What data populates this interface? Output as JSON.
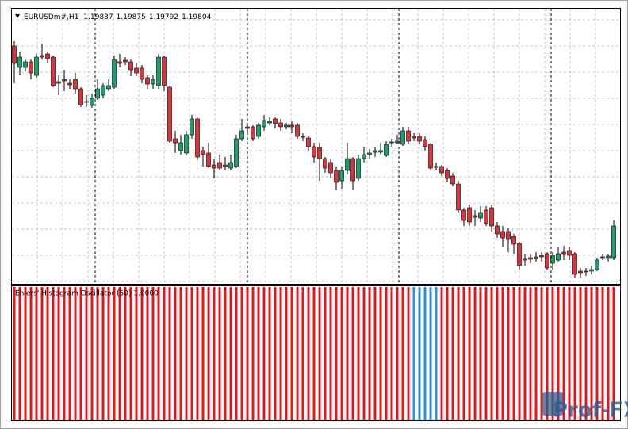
{
  "chart_data": [
    {
      "type": "candlestick",
      "symbol": "EURUSDm#,H1",
      "quote": [
        1.19837,
        1.19875,
        1.19792,
        1.19804
      ],
      "ylim": [
        1.1946,
        1.2119
      ],
      "grid": true,
      "up_color": "#1e9e6b",
      "down_color": "#d8343c",
      "ohlc": [
        [
          1.2096,
          1.2099,
          1.20725,
          1.2085
        ],
        [
          1.20825,
          1.20925,
          1.20775,
          1.2089
        ],
        [
          1.20825,
          1.20875,
          1.208,
          1.2086
        ],
        [
          1.2086,
          1.20875,
          1.2075,
          1.2079
        ],
        [
          1.20775,
          1.2091,
          1.2076,
          1.2089
        ],
        [
          1.209,
          1.20975,
          1.20875,
          1.2089
        ],
        [
          1.2091,
          1.20925,
          1.2085,
          1.2088
        ],
        [
          1.2089,
          1.209,
          1.207,
          1.2071
        ],
        [
          1.20735,
          1.20775,
          1.2065,
          1.20725
        ],
        [
          1.2075,
          1.2081,
          1.20675,
          1.2074
        ],
        [
          1.20725,
          1.2075,
          1.2069,
          1.20715
        ],
        [
          1.2075,
          1.2079,
          1.2066,
          1.2069
        ],
        [
          1.2069,
          1.207,
          1.20575,
          1.2059
        ],
        [
          1.2061,
          1.2065,
          1.20575,
          1.20605
        ],
        [
          1.20585,
          1.2066,
          1.2057,
          1.2063
        ],
        [
          1.2063,
          1.2075,
          1.2062,
          1.2069
        ],
        [
          1.2065,
          1.20725,
          1.2063,
          1.2071
        ],
        [
          1.2069,
          1.2075,
          1.20675,
          1.2071
        ],
        [
          1.207,
          1.209,
          1.2069,
          1.20875
        ],
        [
          1.2086,
          1.2091,
          1.20825,
          1.2085
        ],
        [
          1.2087,
          1.2089,
          1.2084,
          1.2086
        ],
        [
          1.2086,
          1.20875,
          1.2077,
          1.2081
        ],
        [
          1.2082,
          1.2085,
          1.2077,
          1.2079
        ],
        [
          1.2082,
          1.2084,
          1.20725,
          1.2075
        ],
        [
          1.2076,
          1.20775,
          1.2069,
          1.2072
        ],
        [
          1.2072,
          1.20775,
          1.2069,
          1.2075
        ],
        [
          1.2071,
          1.2091,
          1.2069,
          1.2089
        ],
        [
          1.2089,
          1.209,
          1.20675,
          1.2071
        ],
        [
          1.207,
          1.2071,
          1.2035,
          1.2036
        ],
        [
          1.20375,
          1.20425,
          1.20285,
          1.2035
        ],
        [
          1.203,
          1.204,
          1.20275,
          1.2035
        ],
        [
          1.20285,
          1.20425,
          1.2027,
          1.204
        ],
        [
          1.204,
          1.20525,
          1.20375,
          1.205
        ],
        [
          1.205,
          1.2051,
          1.2024,
          1.2026
        ],
        [
          1.203,
          1.20325,
          1.202,
          1.20275
        ],
        [
          1.20285,
          1.2035,
          1.2019,
          1.202
        ],
        [
          1.2021,
          1.2025,
          1.20125,
          1.2019
        ],
        [
          1.20225,
          1.20275,
          1.20175,
          1.2019
        ],
        [
          1.2021,
          1.2026,
          1.20175,
          1.202
        ],
        [
          1.2019,
          1.20275,
          1.20175,
          1.20225
        ],
        [
          1.202,
          1.204,
          1.2019,
          1.20375
        ],
        [
          1.20375,
          1.205,
          1.2036,
          1.20425
        ],
        [
          1.2045,
          1.20475,
          1.2041,
          1.2044
        ],
        [
          1.2045,
          1.2046,
          1.2036,
          1.20375
        ],
        [
          1.2039,
          1.20475,
          1.20375,
          1.2046
        ],
        [
          1.2045,
          1.20525,
          1.20425,
          1.2049
        ],
        [
          1.20475,
          1.2051,
          1.2046,
          1.20485
        ],
        [
          1.205,
          1.2051,
          1.2044,
          1.2047
        ],
        [
          1.20475,
          1.205,
          1.20425,
          1.2045
        ],
        [
          1.2045,
          1.20475,
          1.20435,
          1.2046
        ],
        [
          1.2046,
          1.20485,
          1.2041,
          1.2045
        ],
        [
          1.2046,
          1.20475,
          1.20375,
          1.2039
        ],
        [
          1.2039,
          1.2041,
          1.2036,
          1.20385
        ],
        [
          1.2038,
          1.2039,
          1.203,
          1.20325
        ],
        [
          1.20325,
          1.2035,
          1.20225,
          1.2026
        ],
        [
          1.2032,
          1.2035,
          1.2011,
          1.2025
        ],
        [
          1.2025,
          1.2026,
          1.2016,
          1.2019
        ],
        [
          1.20225,
          1.2025,
          1.20125,
          1.2016
        ],
        [
          1.20175,
          1.202,
          1.2005,
          1.201
        ],
        [
          1.2011,
          1.202,
          1.2006,
          1.20175
        ],
        [
          1.20175,
          1.2035,
          1.2015,
          1.2025
        ],
        [
          1.2025,
          1.2026,
          1.2005,
          1.2011
        ],
        [
          1.20125,
          1.20275,
          1.2011,
          1.2025
        ],
        [
          1.2025,
          1.20325,
          1.20225,
          1.20275
        ],
        [
          1.20275,
          1.2031,
          1.2025,
          1.20285
        ],
        [
          1.2029,
          1.20325,
          1.2026,
          1.203
        ],
        [
          1.2029,
          1.2035,
          1.20275,
          1.203
        ],
        [
          1.2027,
          1.2036,
          1.2026,
          1.2034
        ],
        [
          1.2035,
          1.20375,
          1.20325,
          1.20355
        ],
        [
          1.2035,
          1.204,
          1.2034,
          1.2036
        ],
        [
          1.2034,
          1.2045,
          1.2033,
          1.20425
        ],
        [
          1.20425,
          1.2045,
          1.2034,
          1.2036
        ],
        [
          1.2039,
          1.2041,
          1.2036,
          1.2038
        ],
        [
          1.2039,
          1.2041,
          1.2034,
          1.2036
        ],
        [
          1.2037,
          1.2039,
          1.203,
          1.20325
        ],
        [
          1.2034,
          1.2035,
          1.20175,
          1.2019
        ],
        [
          1.202,
          1.20225,
          1.20175,
          1.20195
        ],
        [
          1.202,
          1.2021,
          1.2014,
          1.2016
        ],
        [
          1.20175,
          1.2019,
          1.201,
          1.20125
        ],
        [
          1.2014,
          1.2016,
          1.20075,
          1.2009
        ],
        [
          1.2009,
          1.2011,
          1.1991,
          1.19925
        ],
        [
          1.19925,
          1.1994,
          1.19825,
          1.1986
        ],
        [
          1.1994,
          1.1996,
          1.19825,
          1.1985
        ],
        [
          1.1989,
          1.19925,
          1.19825,
          1.1988
        ],
        [
          1.19875,
          1.1995,
          1.1985,
          1.1991
        ],
        [
          1.19925,
          1.1995,
          1.19825,
          1.1984
        ],
        [
          1.1994,
          1.1996,
          1.1979,
          1.19825
        ],
        [
          1.19825,
          1.1985,
          1.1975,
          1.19775
        ],
        [
          1.1979,
          1.19825,
          1.1969,
          1.1975
        ],
        [
          1.1979,
          1.1981,
          1.1966,
          1.1974
        ],
        [
          1.1976,
          1.19775,
          1.1965,
          1.1971
        ],
        [
          1.19715,
          1.19725,
          1.1955,
          1.19575
        ],
        [
          1.1962,
          1.1965,
          1.19575,
          1.1961
        ],
        [
          1.19625,
          1.1965,
          1.1959,
          1.19615
        ],
        [
          1.1963,
          1.1966,
          1.196,
          1.1962
        ],
        [
          1.1964,
          1.1966,
          1.196,
          1.1963
        ],
        [
          1.1965,
          1.1966,
          1.1955,
          1.1956
        ],
        [
          1.1959,
          1.1966,
          1.1955,
          1.1964
        ],
        [
          1.1961,
          1.1969,
          1.196,
          1.1965
        ],
        [
          1.1966,
          1.197,
          1.1961,
          1.1965
        ],
        [
          1.1967,
          1.1969,
          1.1961,
          1.1964
        ],
        [
          1.1965,
          1.1966,
          1.195,
          1.1952
        ],
        [
          1.1954,
          1.1956,
          1.195,
          1.1953
        ],
        [
          1.19535,
          1.1956,
          1.1951,
          1.1954
        ],
        [
          1.1954,
          1.19575,
          1.1952,
          1.1955
        ],
        [
          1.1955,
          1.19625,
          1.1954,
          1.1961
        ],
        [
          1.19625,
          1.1965,
          1.1961,
          1.1963
        ],
        [
          1.19625,
          1.1965,
          1.196,
          1.19635
        ],
        [
          1.19625,
          1.1986,
          1.1961,
          1.19825
        ]
      ]
    },
    {
      "type": "histogram-oscillator",
      "title": "Ehlers' Histogram Oscillator (50) 1.0000",
      "ylim": [
        0,
        1
      ],
      "values": [
        1,
        1,
        1,
        1,
        1,
        1,
        1,
        1,
        1,
        1,
        1,
        1,
        1,
        1,
        1,
        1,
        1,
        1,
        1,
        1,
        1,
        1,
        1,
        1,
        1,
        1,
        1,
        1,
        1,
        1,
        1,
        1,
        1,
        1,
        1,
        1,
        1,
        1,
        1,
        1,
        1,
        1,
        1,
        1,
        1,
        1,
        1,
        1,
        1,
        1,
        1,
        1,
        1,
        1,
        1,
        1,
        1,
        1,
        1,
        1,
        1,
        1,
        1,
        1,
        1,
        1,
        1,
        1,
        1,
        1,
        1,
        1,
        1,
        1,
        1,
        1,
        1,
        1,
        1,
        1,
        1,
        1,
        1,
        1,
        1,
        1,
        1,
        1,
        1,
        1,
        1,
        1,
        1,
        1,
        1,
        1,
        1,
        1,
        1,
        1,
        1,
        1,
        1,
        1,
        1,
        1,
        1,
        1,
        1
      ],
      "colors": [
        "#e4151d",
        "#e4151d",
        "#e4151d",
        "#e4151d",
        "#e4151d",
        "#e4151d",
        "#e4151d",
        "#e4151d",
        "#e4151d",
        "#e4151d",
        "#e4151d",
        "#e4151d",
        "#e4151d",
        "#e4151d",
        "#e4151d",
        "#e4151d",
        "#e4151d",
        "#e4151d",
        "#e4151d",
        "#e4151d",
        "#e4151d",
        "#e4151d",
        "#e4151d",
        "#e4151d",
        "#e4151d",
        "#e4151d",
        "#e4151d",
        "#e4151d",
        "#e4151d",
        "#e4151d",
        "#e4151d",
        "#e4151d",
        "#e4151d",
        "#e4151d",
        "#e4151d",
        "#e4151d",
        "#e4151d",
        "#e4151d",
        "#e4151d",
        "#e4151d",
        "#e4151d",
        "#e4151d",
        "#e4151d",
        "#e4151d",
        "#e4151d",
        "#e4151d",
        "#e4151d",
        "#e4151d",
        "#e4151d",
        "#e4151d",
        "#e4151d",
        "#e4151d",
        "#e4151d",
        "#e4151d",
        "#e4151d",
        "#e4151d",
        "#e4151d",
        "#e4151d",
        "#e4151d",
        "#e4151d",
        "#e4151d",
        "#e4151d",
        "#e4151d",
        "#e4151d",
        "#e4151d",
        "#e4151d",
        "#e4151d",
        "#e4151d",
        "#e4151d",
        "#e4151d",
        "#e4151d",
        "#e4151d",
        "#2d8fe3",
        "#2d8fe3",
        "#2d8fe3",
        "#2d8fe3",
        "#2d8fe3",
        "#e4151d",
        "#e4151d",
        "#e4151d",
        "#e4151d",
        "#e4151d",
        "#e4151d",
        "#e4151d",
        "#e4151d",
        "#e4151d",
        "#e4151d",
        "#e4151d",
        "#e4151d",
        "#e4151d",
        "#e4151d",
        "#e4151d",
        "#e4151d",
        "#e4151d",
        "#e4151d",
        "#e4151d",
        "#e4151d",
        "#e4151d",
        "#e4151d",
        "#e4151d",
        "#e4151d",
        "#e4151d",
        "#e4151d",
        "#e4151d",
        "#e4151d",
        "#e4151d",
        "#e4151d",
        "#e4151d",
        "#e4151d"
      ]
    }
  ],
  "watermark": "Prof-FX"
}
